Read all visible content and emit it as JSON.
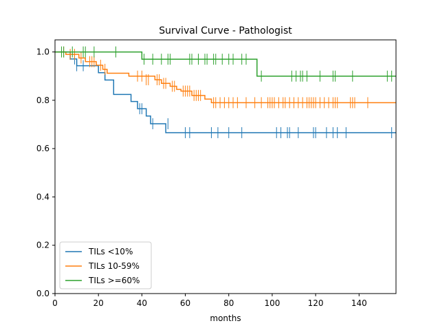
{
  "chart_data": {
    "type": "line",
    "title": "Survival Curve - Pathologist",
    "xlabel": "months",
    "ylabel": "",
    "xlim": [
      0,
      157
    ],
    "ylim": [
      0,
      1.05
    ],
    "xticks": [
      0,
      20,
      40,
      60,
      80,
      100,
      120,
      140
    ],
    "yticks": [
      0.0,
      0.2,
      0.4,
      0.6,
      0.8,
      1.0
    ],
    "grid": false,
    "legend_position": "lower-left",
    "series": [
      {
        "name": "TILs <10%",
        "color": "#1f77b4",
        "steps": [
          [
            0,
            1.0
          ],
          [
            7,
            0.971
          ],
          [
            10,
            0.943
          ],
          [
            20,
            0.914
          ],
          [
            23,
            0.884
          ],
          [
            27,
            0.824
          ],
          [
            35,
            0.795
          ],
          [
            38,
            0.765
          ],
          [
            42,
            0.735
          ],
          [
            44,
            0.703
          ],
          [
            51,
            0.666
          ],
          [
            157,
            0.666
          ]
        ],
        "censored": [
          [
            9,
            0.971
          ],
          [
            10,
            0.943
          ],
          [
            13,
            0.943
          ],
          [
            39,
            0.765
          ],
          [
            40,
            0.765
          ],
          [
            45,
            0.703
          ],
          [
            52,
            0.703
          ],
          [
            60,
            0.666
          ],
          [
            62,
            0.666
          ],
          [
            72,
            0.666
          ],
          [
            75,
            0.666
          ],
          [
            80,
            0.666
          ],
          [
            86,
            0.666
          ],
          [
            102,
            0.666
          ],
          [
            104,
            0.666
          ],
          [
            107,
            0.666
          ],
          [
            108,
            0.666
          ],
          [
            112,
            0.666
          ],
          [
            119,
            0.666
          ],
          [
            120,
            0.666
          ],
          [
            125,
            0.666
          ],
          [
            128,
            0.666
          ],
          [
            130,
            0.666
          ],
          [
            134,
            0.666
          ],
          [
            155,
            0.666
          ]
        ]
      },
      {
        "name": "TILs 10-59%",
        "color": "#ff7f0e",
        "steps": [
          [
            0,
            1.0
          ],
          [
            5,
            0.99
          ],
          [
            11,
            0.975
          ],
          [
            14,
            0.96
          ],
          [
            19,
            0.945
          ],
          [
            22,
            0.928
          ],
          [
            24,
            0.912
          ],
          [
            34,
            0.9
          ],
          [
            46,
            0.885
          ],
          [
            49,
            0.87
          ],
          [
            53,
            0.858
          ],
          [
            56,
            0.845
          ],
          [
            58,
            0.838
          ],
          [
            63,
            0.82
          ],
          [
            69,
            0.805
          ],
          [
            72,
            0.79
          ],
          [
            157,
            0.79
          ]
        ],
        "censored": [
          [
            4,
            1.0
          ],
          [
            7,
            0.99
          ],
          [
            9,
            0.99
          ],
          [
            12,
            0.975
          ],
          [
            16,
            0.96
          ],
          [
            17,
            0.96
          ],
          [
            18,
            0.96
          ],
          [
            21,
            0.945
          ],
          [
            23,
            0.928
          ],
          [
            38,
            0.9
          ],
          [
            40,
            0.9
          ],
          [
            42,
            0.885
          ],
          [
            43,
            0.885
          ],
          [
            47,
            0.885
          ],
          [
            48,
            0.885
          ],
          [
            50,
            0.87
          ],
          [
            51,
            0.87
          ],
          [
            54,
            0.858
          ],
          [
            55,
            0.858
          ],
          [
            59,
            0.838
          ],
          [
            60,
            0.838
          ],
          [
            61,
            0.838
          ],
          [
            62,
            0.838
          ],
          [
            64,
            0.82
          ],
          [
            65,
            0.82
          ],
          [
            66,
            0.82
          ],
          [
            67,
            0.82
          ],
          [
            73,
            0.79
          ],
          [
            74,
            0.79
          ],
          [
            76,
            0.79
          ],
          [
            78,
            0.79
          ],
          [
            80,
            0.79
          ],
          [
            82,
            0.79
          ],
          [
            84,
            0.79
          ],
          [
            88,
            0.79
          ],
          [
            92,
            0.79
          ],
          [
            95,
            0.79
          ],
          [
            98,
            0.79
          ],
          [
            99,
            0.79
          ],
          [
            100,
            0.79
          ],
          [
            101,
            0.79
          ],
          [
            103,
            0.79
          ],
          [
            105,
            0.79
          ],
          [
            106,
            0.79
          ],
          [
            108,
            0.79
          ],
          [
            110,
            0.79
          ],
          [
            112,
            0.79
          ],
          [
            114,
            0.79
          ],
          [
            116,
            0.79
          ],
          [
            117,
            0.79
          ],
          [
            118,
            0.79
          ],
          [
            119,
            0.79
          ],
          [
            120,
            0.79
          ],
          [
            122,
            0.79
          ],
          [
            124,
            0.79
          ],
          [
            126,
            0.79
          ],
          [
            128,
            0.79
          ],
          [
            129,
            0.79
          ],
          [
            130,
            0.79
          ],
          [
            136,
            0.79
          ],
          [
            137,
            0.79
          ],
          [
            138,
            0.79
          ],
          [
            144,
            0.79
          ]
        ]
      },
      {
        "name": "TILs >=60%",
        "color": "#2ca02c",
        "steps": [
          [
            0,
            1.0
          ],
          [
            40,
            0.97
          ],
          [
            93,
            0.9
          ],
          [
            157,
            0.9
          ]
        ],
        "censored": [
          [
            3,
            1.0
          ],
          [
            4,
            1.0
          ],
          [
            8,
            1.0
          ],
          [
            13,
            1.0
          ],
          [
            14,
            1.0
          ],
          [
            18,
            1.0
          ],
          [
            28,
            1.0
          ],
          [
            41,
            0.97
          ],
          [
            45,
            0.97
          ],
          [
            49,
            0.97
          ],
          [
            52,
            0.97
          ],
          [
            53,
            0.97
          ],
          [
            62,
            0.97
          ],
          [
            63,
            0.97
          ],
          [
            66,
            0.97
          ],
          [
            69,
            0.97
          ],
          [
            70,
            0.97
          ],
          [
            73,
            0.97
          ],
          [
            74,
            0.97
          ],
          [
            77,
            0.97
          ],
          [
            80,
            0.97
          ],
          [
            82,
            0.97
          ],
          [
            86,
            0.97
          ],
          [
            88,
            0.97
          ],
          [
            95,
            0.9
          ],
          [
            109,
            0.9
          ],
          [
            111,
            0.9
          ],
          [
            113,
            0.9
          ],
          [
            114,
            0.9
          ],
          [
            116,
            0.9
          ],
          [
            122,
            0.9
          ],
          [
            128,
            0.9
          ],
          [
            129,
            0.9
          ],
          [
            137,
            0.9
          ],
          [
            153,
            0.9
          ],
          [
            155,
            0.9
          ]
        ]
      }
    ]
  }
}
